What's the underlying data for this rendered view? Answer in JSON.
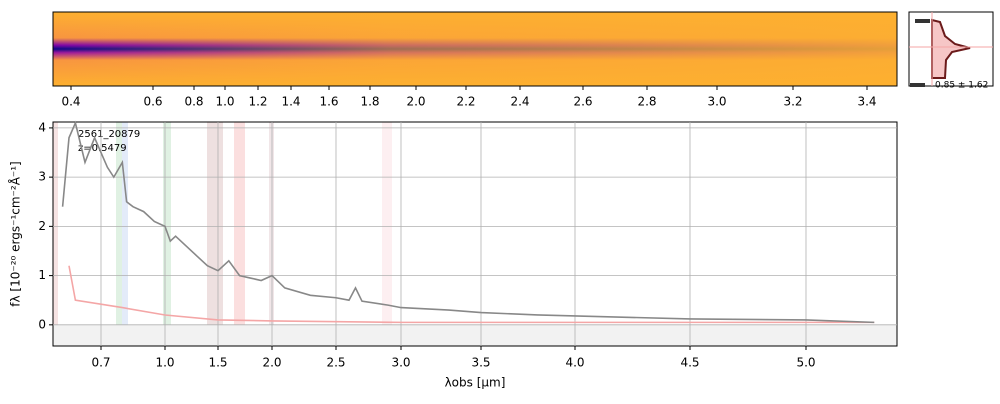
{
  "chart_data": {
    "type": "line",
    "object_id": "2561_20879",
    "redshift_label": "z=0.5479",
    "x_label": "λobs [μm]",
    "y_label": "fλ [10⁻²⁰ ergs⁻¹cm⁻²Å⁻¹]",
    "histogram_label": "0.85 ± 1.62",
    "top_xlim": [
      0.35,
      3.45
    ],
    "top_xticks": [
      0.4,
      0.6,
      0.8,
      {
        "value": 1,
        "label": "1.0"
      },
      1.2,
      1.4,
      1.6,
      1.8,
      {
        "value": 2,
        "label": "2.0"
      },
      2.2,
      2.4,
      2.6,
      2.8,
      {
        "value": 3,
        "label": "3.0"
      },
      3.2,
      3.4
    ],
    "xlim": [
      0.55,
      5.4
    ],
    "xticks": [
      0.7,
      {
        "value": 1,
        "label": "1.0"
      },
      1.5,
      {
        "value": 2,
        "label": "2.0"
      },
      2.5,
      {
        "value": 3,
        "label": "3.0"
      },
      3.5,
      {
        "value": 4,
        "label": "4.0"
      },
      4.5,
      {
        "value": 5,
        "label": "5.0"
      }
    ],
    "ylim": [
      -0.43,
      4.12
    ],
    "yticks": [
      0,
      1,
      2,
      3,
      4
    ],
    "grid": true,
    "series": [
      {
        "name": "spectrum",
        "color": "#888888",
        "x": [
          0.58,
          0.6,
          0.62,
          0.65,
          0.68,
          0.7,
          0.73,
          0.76,
          0.8,
          0.82,
          0.85,
          0.9,
          0.95,
          1.0,
          1.05,
          1.1,
          1.2,
          1.3,
          1.4,
          1.5,
          1.6,
          1.7,
          1.8,
          1.9,
          2.0,
          2.1,
          2.3,
          2.5,
          2.6,
          2.65,
          2.7,
          2.9,
          3.0,
          3.3,
          3.5,
          3.8,
          4.0,
          4.5,
          5.0,
          5.3
        ],
        "values": [
          2.4,
          3.8,
          4.1,
          3.3,
          3.8,
          3.5,
          3.2,
          3.0,
          3.3,
          2.5,
          2.4,
          2.3,
          2.1,
          2.0,
          1.7,
          1.8,
          1.6,
          1.4,
          1.2,
          1.1,
          1.3,
          1.0,
          0.95,
          0.9,
          1.0,
          0.75,
          0.6,
          0.55,
          0.5,
          0.75,
          0.48,
          0.4,
          0.35,
          0.3,
          0.25,
          0.2,
          0.18,
          0.12,
          0.1,
          0.05
        ]
      },
      {
        "name": "error",
        "color": "#f4a6a6",
        "x": [
          0.6,
          0.62,
          0.8,
          1.0,
          1.5,
          2.0,
          3.0,
          4.0,
          5.3
        ],
        "values": [
          1.2,
          0.5,
          0.35,
          0.2,
          0.1,
          0.08,
          0.05,
          0.05,
          0.05
        ]
      }
    ]
  }
}
